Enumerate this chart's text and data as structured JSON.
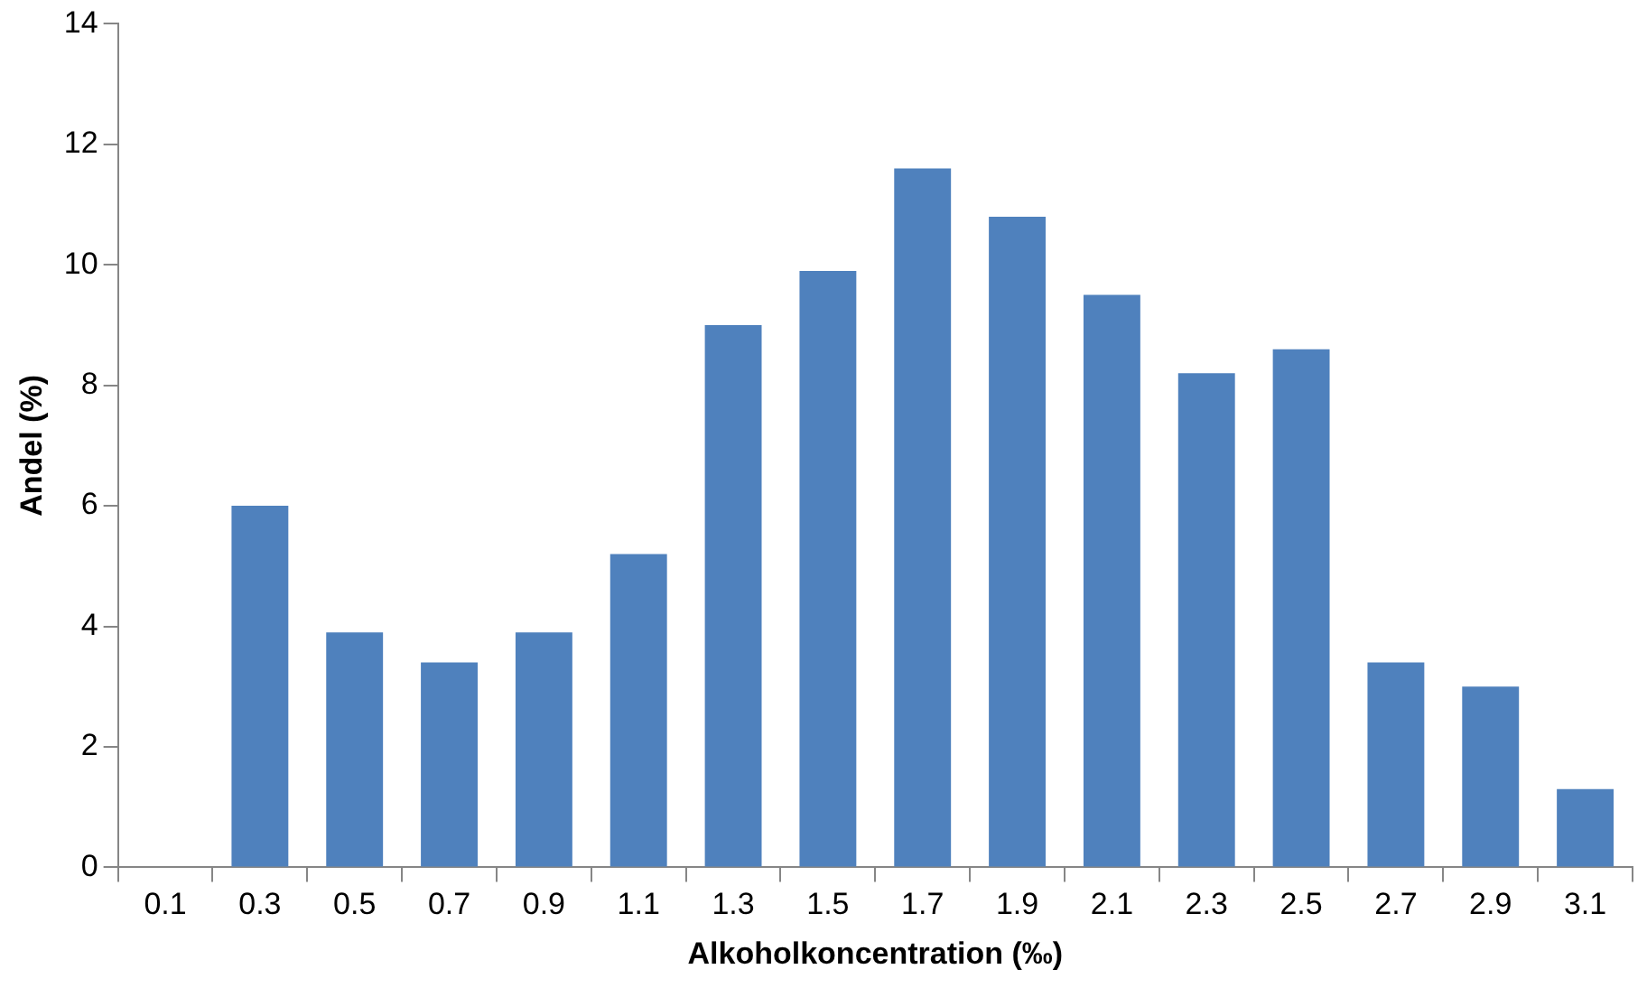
{
  "chart_data": {
    "type": "bar",
    "xlabel": "Alkoholkoncentration (‰)",
    "ylabel": "Andel (%)",
    "categories": [
      "0.1",
      "0.3",
      "0.5",
      "0.7",
      "0.9",
      "1.1",
      "1.3",
      "1.5",
      "1.7",
      "1.9",
      "2.1",
      "2.3",
      "2.5",
      "2.7",
      "2.9",
      "3.1"
    ],
    "values": [
      0,
      6.0,
      3.9,
      3.4,
      3.9,
      5.2,
      9.0,
      9.9,
      11.6,
      10.8,
      9.5,
      8.2,
      8.6,
      3.4,
      3.0,
      1.3
    ],
    "color": "#4f81bd",
    "ylim": [
      0,
      14
    ],
    "yticks": [
      0,
      2,
      4,
      6,
      8,
      10,
      12,
      14
    ],
    "grid": false,
    "legend": false
  }
}
